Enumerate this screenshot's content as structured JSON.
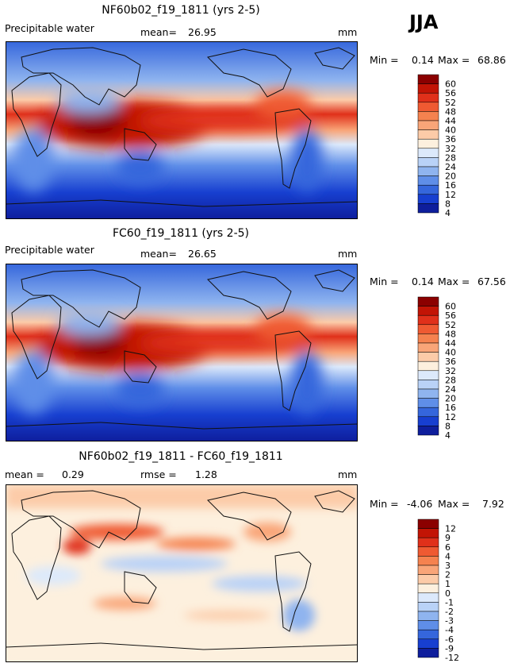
{
  "season": "JJA",
  "chart_data": [
    {
      "type": "heatmap",
      "title": "NF60b02_f19_1811 (yrs 2-5)",
      "variable": "Precipitable water",
      "mean_label": "mean=",
      "mean": "26.95",
      "units": "mm",
      "min_label": "Min =",
      "min": "0.14",
      "max_label": "Max =",
      "max": "68.86",
      "levels": [
        "60",
        "56",
        "52",
        "48",
        "44",
        "40",
        "36",
        "32",
        "28",
        "24",
        "20",
        "16",
        "12",
        "8",
        "4"
      ],
      "colors": [
        "#8b0000",
        "#c21405",
        "#e0301a",
        "#ef5a32",
        "#f5824f",
        "#f9a578",
        "#fccba8",
        "#fdf0de",
        "#dce9fb",
        "#b9d2f7",
        "#8fb4ef",
        "#5f8ee8",
        "#3566dc",
        "#173fd0",
        "#0e1e9c"
      ]
    },
    {
      "type": "heatmap",
      "title": "FC60_f19_1811 (yrs 2-5)",
      "variable": "Precipitable water",
      "mean_label": "mean=",
      "mean": "26.65",
      "units": "mm",
      "min_label": "Min =",
      "min": "0.14",
      "max_label": "Max =",
      "max": "67.56",
      "levels": [
        "60",
        "56",
        "52",
        "48",
        "44",
        "40",
        "36",
        "32",
        "28",
        "24",
        "20",
        "16",
        "12",
        "8",
        "4"
      ],
      "colors": [
        "#8b0000",
        "#c21405",
        "#e0301a",
        "#ef5a32",
        "#f5824f",
        "#f9a578",
        "#fccba8",
        "#fdf0de",
        "#dce9fb",
        "#b9d2f7",
        "#8fb4ef",
        "#5f8ee8",
        "#3566dc",
        "#173fd0",
        "#0e1e9c"
      ]
    },
    {
      "type": "heatmap",
      "title": "NF60b02_f19_1811 - FC60_f19_1811",
      "mean_label": "mean =",
      "mean": "0.29",
      "rmse_label": "rmse =",
      "rmse": "1.28",
      "units": "mm",
      "min_label": "Min =",
      "min": "-4.06",
      "max_label": "Max =",
      "max": "7.92",
      "levels": [
        "12",
        "9",
        "6",
        "4",
        "3",
        "2",
        "1",
        "0",
        "-1",
        "-2",
        "-3",
        "-4",
        "-6",
        "-9",
        "-12"
      ],
      "colors": [
        "#8b0000",
        "#c21405",
        "#e0301a",
        "#ef5a32",
        "#f5824f",
        "#f9a578",
        "#fccba8",
        "#fdf0de",
        "#dce9fb",
        "#b9d2f7",
        "#8fb4ef",
        "#5f8ee8",
        "#3566dc",
        "#173fd0",
        "#0e1e9c"
      ]
    }
  ]
}
